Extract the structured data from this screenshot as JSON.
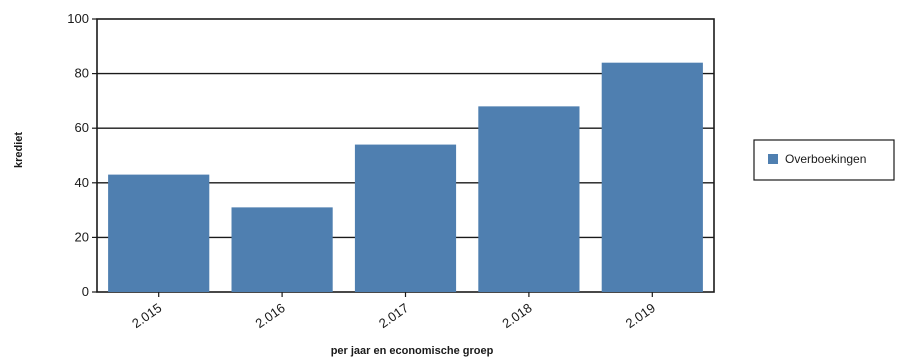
{
  "chart_data": {
    "type": "bar",
    "categories": [
      "2.015",
      "2.016",
      "2.017",
      "2.018",
      "2.019"
    ],
    "series": [
      {
        "name": "Overboekingen",
        "values": [
          43,
          31,
          54,
          68,
          84
        ],
        "color": "#4f7fb0"
      }
    ],
    "xlabel": "per jaar en economische groep",
    "ylabel": "krediet",
    "ylim": [
      0,
      100
    ],
    "yticks": [
      0,
      20,
      40,
      60,
      80,
      100
    ],
    "grid": true,
    "legend": "right",
    "legend_label": "Overboekingen"
  }
}
